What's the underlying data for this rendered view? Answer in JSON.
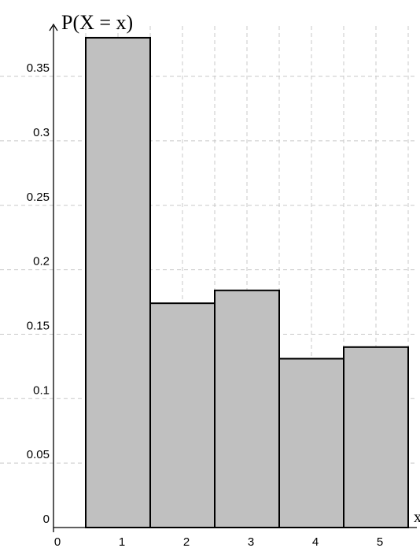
{
  "chart_data": {
    "type": "bar",
    "categories": [
      "1",
      "2",
      "3",
      "4",
      "5"
    ],
    "values": [
      0.38,
      0.174,
      0.184,
      0.131,
      0.14
    ],
    "title": "",
    "xlabel": "x",
    "ylabel": "P(X = x)",
    "xlim": [
      0,
      5.5
    ],
    "ylim": [
      0,
      0.39
    ],
    "x_ticks": [
      "0",
      "1",
      "2",
      "3",
      "4",
      "5"
    ],
    "y_ticks": [
      "0",
      "0.05",
      "0.1",
      "0.15",
      "0.2",
      "0.25",
      "0.3",
      "0.35"
    ],
    "grid": true,
    "bar_color": "#c0c0c0",
    "edge_color": "#000000",
    "grid_color": "#c8c8c8"
  }
}
